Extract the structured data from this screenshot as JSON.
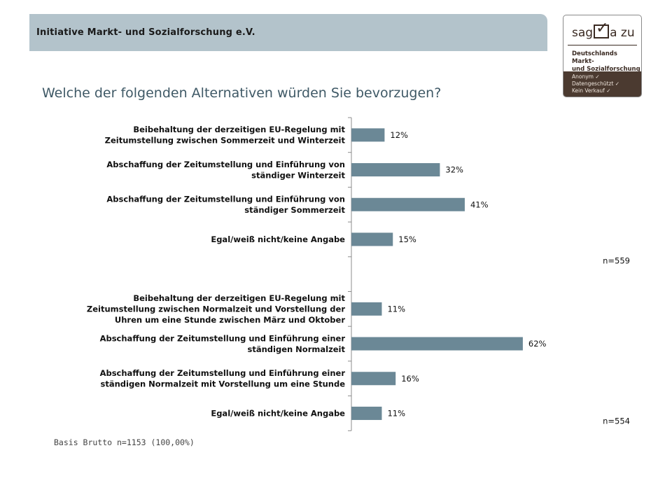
{
  "header": {
    "title": "Initiative Markt- und Sozialforschung e.V."
  },
  "logo": {
    "brand_left": "sag",
    "brand_right": "a zu",
    "subtitle_line1": "Deutschlands Markt-",
    "subtitle_line2": "und Sozialforschung",
    "foot_line1": "Anonym ✓",
    "foot_line2": "Datengeschützt ✓",
    "foot_line3": "Kein Verkauf ✓"
  },
  "question": "Welche der folgenden Alternativen würden Sie bevorzugen?",
  "basis": "Basis Brutto n=1153 (100,00%)",
  "colors": {
    "bar": "#6b8896",
    "axis": "#8c8c8c",
    "header": "#b3c3cb"
  },
  "chart_data": [
    {
      "type": "bar",
      "orientation": "horizontal",
      "categories": [
        [
          "Beibehaltung der derzeitigen EU-Regelung mit",
          "Zeitumstellung zwischen Sommerzeit und Winterzeit"
        ],
        [
          "Abschaffung der Zeitumstellung und Einführung von",
          "ständiger Winterzeit"
        ],
        [
          "Abschaffung der Zeitumstellung und Einführung von",
          "ständiger Sommerzeit"
        ],
        [
          "Egal/weiß nicht/keine Angabe"
        ]
      ],
      "values": [
        12,
        32,
        41,
        15
      ],
      "value_labels": [
        "12%",
        "32%",
        "41%",
        "15%"
      ],
      "n": "n=559"
    },
    {
      "type": "bar",
      "orientation": "horizontal",
      "categories": [
        [
          "Beibehaltung der derzeitigen EU-Regelung mit",
          "Zeitumstellung zwischen Normalzeit und Vorstellung der",
          "Uhren um eine Stunde zwischen März und Oktober"
        ],
        [
          "Abschaffung der Zeitumstellung und Einführung einer",
          "ständigen Normalzeit"
        ],
        [
          "Abschaffung der Zeitumstellung und Einführung einer",
          "ständigen Normalzeit mit Vorstellung um eine Stunde"
        ],
        [
          "Egal/weiß nicht/keine Angabe"
        ]
      ],
      "values": [
        11,
        62,
        16,
        11
      ],
      "value_labels": [
        "11%",
        "62%",
        "16%",
        "11%"
      ],
      "n": "n=554"
    }
  ]
}
